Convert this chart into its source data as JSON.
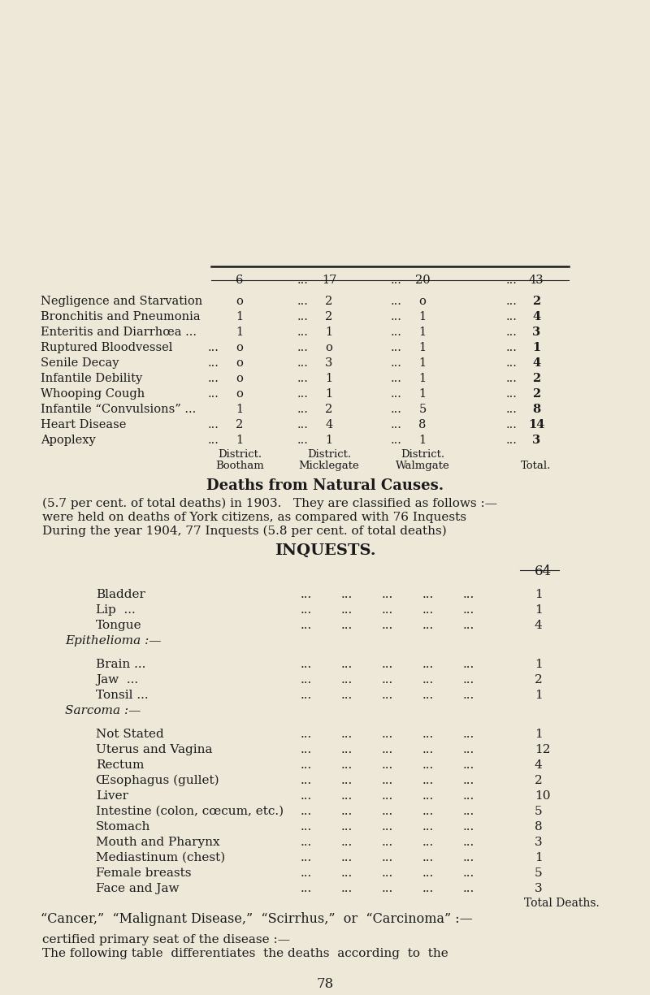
{
  "bg_color": "#ede8d8",
  "page_number": "78",
  "intro_line1": "The following table  differentiates  the deaths  according  to  the",
  "intro_line2": "certified primary seat of the disease :—",
  "cancer_heading": "“Cancer,”  “Malignant Disease,”  “Scirrhus,”  or  “Carcinoma” :—",
  "cancer_col_header": "Total Deaths.",
  "cancer_rows": [
    [
      "Face and Jaw",
      "3"
    ],
    [
      "Female breasts",
      "5"
    ],
    [
      "Mediastinum (chest)",
      "1"
    ],
    [
      "Mouth and Pharynx",
      "3"
    ],
    [
      "Stomach",
      "8"
    ],
    [
      "Intestine (colon, cœcum, etc.)",
      "5"
    ],
    [
      "Liver",
      "10"
    ],
    [
      "Œsophagus (gullet)",
      "2"
    ],
    [
      "Rectum",
      "4"
    ],
    [
      "Uterus and Vagina",
      "12"
    ],
    [
      "Not Stated",
      "1"
    ]
  ],
  "sarcoma_heading": "Sarcoma :—",
  "sarcoma_rows": [
    [
      "Tonsil ...",
      "1"
    ],
    [
      "Jaw  ...",
      "2"
    ],
    [
      "Brain ...",
      "1"
    ]
  ],
  "epithelioma_heading": "Epithelioma :—",
  "epithelioma_rows": [
    [
      "Tongue",
      "4"
    ],
    [
      "Lip  ...",
      "1"
    ],
    [
      "Bladder",
      "1"
    ]
  ],
  "grand_total": "64",
  "inquests_heading": "INQUESTS.",
  "inquests_para_line1": "During the year 1904, 77 Inquests (5.8 per cent. of total deaths)",
  "inquests_para_line2": "were held on deaths of York citizens, as compared with 76 Inquests",
  "inquests_para_line3": "(5.7 per cent. of total deaths) in 1903.   They are classified as follows :—",
  "deaths_heading": "Deaths from Natural Causes.",
  "inquest_rows": [
    [
      "Apoplexy",
      "...",
      "1",
      "...",
      "1",
      "...",
      "1",
      "...",
      "3"
    ],
    [
      "Heart Disease",
      "...",
      "2",
      "...",
      "4",
      "...",
      "8",
      "...",
      "14"
    ],
    [
      "Infantile “Convulsions” ...",
      "1",
      "...",
      "2",
      "...",
      "5",
      "...",
      "8",
      ""
    ],
    [
      "Whooping Cough",
      "...",
      "o",
      "...",
      "1",
      "...",
      "1",
      "...",
      "2"
    ],
    [
      "Infantile Debility",
      "...",
      "o",
      "...",
      "1",
      "...",
      "1",
      "...",
      "2"
    ],
    [
      "Senile Decay",
      "...",
      "o",
      "...",
      "3",
      "...",
      "1",
      "...",
      "4"
    ],
    [
      "Ruptured Bloodvessel",
      "...",
      "o",
      "...",
      "o",
      "...",
      "1",
      "...",
      "1"
    ],
    [
      "Enteritis and Diarrhœa ...",
      "1",
      "...",
      "1",
      "...",
      "1",
      "...",
      "3",
      ""
    ],
    [
      "Bronchitis and Pneumonia",
      "1",
      "...",
      "2",
      "...",
      "1",
      "...",
      "4",
      ""
    ],
    [
      "Negligence and Starvation",
      "o",
      "...",
      "2",
      "...",
      "o",
      "...",
      "2",
      ""
    ]
  ],
  "inquest_totals_b": "6",
  "inquest_totals_m": "17",
  "inquest_totals_w": "20",
  "inquest_totals_t": "43"
}
